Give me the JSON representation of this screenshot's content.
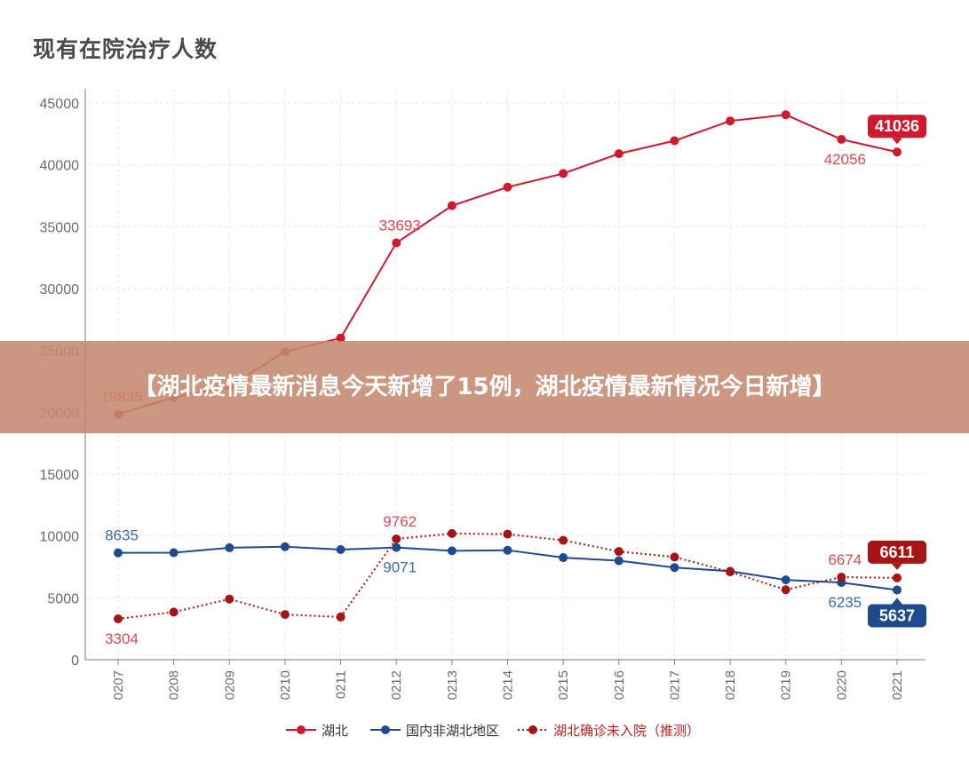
{
  "title": "现有在院治疗人数",
  "banner": "【湖北疫情最新消息今天新增了15例，湖北疫情最新情况今日新增】",
  "chart_data": {
    "type": "line",
    "title": "现有在院治疗人数",
    "xlabel": "",
    "ylabel": "",
    "x": [
      "0207",
      "0208",
      "0209",
      "0210",
      "0211",
      "0212",
      "0213",
      "0214",
      "0215",
      "0216",
      "0217",
      "0218",
      "0219",
      "0220",
      "0221"
    ],
    "ylim": [
      0,
      45000
    ],
    "yticks": [
      "0",
      "5000",
      "10000",
      "15000",
      "20000",
      "25000",
      "30000",
      "35000",
      "40000",
      "45000"
    ],
    "grid": true,
    "legend_position": "bottom",
    "series": [
      {
        "name": "湖北",
        "color": "#d0192e",
        "line": "solid",
        "values": [
          19835,
          21200,
          22100,
          24900,
          26000,
          33693,
          36700,
          38200,
          39300,
          40900,
          41950,
          43550,
          44050,
          42056,
          41036
        ]
      },
      {
        "name": "国内非湖北地区",
        "color": "#1f4a8e",
        "line": "solid",
        "values": [
          8635,
          8650,
          9050,
          9130,
          8900,
          9071,
          8800,
          8850,
          8250,
          8000,
          7450,
          7150,
          6450,
          6235,
          5637
        ]
      },
      {
        "name": "湖北确诊未入院（推测）",
        "color": "#a61414",
        "line": "dotted",
        "values": [
          3304,
          3850,
          4900,
          3650,
          3450,
          9762,
          10200,
          10150,
          9650,
          8750,
          8300,
          7100,
          5650,
          6674,
          6611
        ]
      }
    ],
    "annotations": [
      {
        "series": 0,
        "index": 0,
        "text": "19835",
        "pos": "above"
      },
      {
        "series": 0,
        "index": 5,
        "text": "33693",
        "pos": "above"
      },
      {
        "series": 0,
        "index": 13,
        "text": "42056",
        "pos": "below"
      },
      {
        "series": 0,
        "index": 14,
        "text": "41036",
        "pos": "badge"
      },
      {
        "series": 1,
        "index": 0,
        "text": "8635",
        "pos": "above"
      },
      {
        "series": 1,
        "index": 5,
        "text": "9071",
        "pos": "below"
      },
      {
        "series": 1,
        "index": 13,
        "text": "6235",
        "pos": "below"
      },
      {
        "series": 1,
        "index": 14,
        "text": "5637",
        "pos": "badge-below"
      },
      {
        "series": 2,
        "index": 0,
        "text": "3304",
        "pos": "below"
      },
      {
        "series": 2,
        "index": 5,
        "text": "9762",
        "pos": "above"
      },
      {
        "series": 2,
        "index": 13,
        "text": "6674",
        "pos": "above"
      },
      {
        "series": 2,
        "index": 14,
        "text": "6611",
        "pos": "badge"
      }
    ]
  }
}
